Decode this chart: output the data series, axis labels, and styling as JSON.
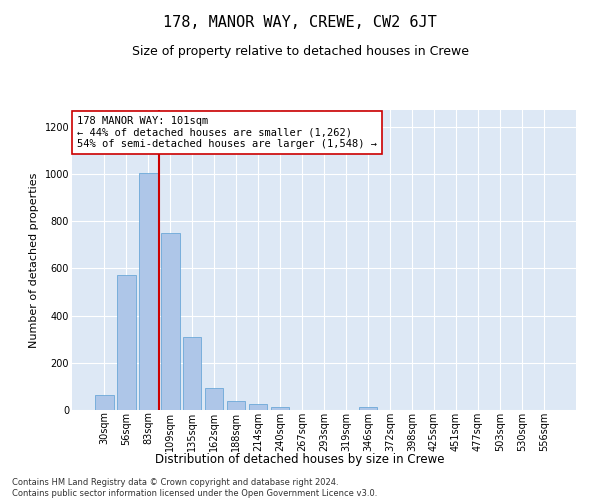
{
  "title": "178, MANOR WAY, CREWE, CW2 6JT",
  "subtitle": "Size of property relative to detached houses in Crewe",
  "xlabel": "Distribution of detached houses by size in Crewe",
  "ylabel": "Number of detached properties",
  "bar_color": "#aec6e8",
  "bar_edge_color": "#5a9fd4",
  "background_color": "#dde8f5",
  "grid_color": "#ffffff",
  "vline_color": "#cc0000",
  "vline_x_index": 3,
  "categories": [
    "30sqm",
    "56sqm",
    "83sqm",
    "109sqm",
    "135sqm",
    "162sqm",
    "188sqm",
    "214sqm",
    "240sqm",
    "267sqm",
    "293sqm",
    "319sqm",
    "346sqm",
    "372sqm",
    "398sqm",
    "425sqm",
    "451sqm",
    "477sqm",
    "503sqm",
    "530sqm",
    "556sqm"
  ],
  "values": [
    62,
    570,
    1005,
    750,
    310,
    93,
    38,
    25,
    14,
    1,
    0,
    0,
    14,
    0,
    0,
    0,
    0,
    0,
    0,
    0,
    0
  ],
  "ylim": [
    0,
    1270
  ],
  "yticks": [
    0,
    200,
    400,
    600,
    800,
    1000,
    1200
  ],
  "annotation_text": "178 MANOR WAY: 101sqm\n← 44% of detached houses are smaller (1,262)\n54% of semi-detached houses are larger (1,548) →",
  "footer_line1": "Contains HM Land Registry data © Crown copyright and database right 2024.",
  "footer_line2": "Contains public sector information licensed under the Open Government Licence v3.0.",
  "title_fontsize": 11,
  "subtitle_fontsize": 9,
  "xlabel_fontsize": 8.5,
  "ylabel_fontsize": 8,
  "tick_fontsize": 7,
  "annotation_fontsize": 7.5,
  "footer_fontsize": 6
}
